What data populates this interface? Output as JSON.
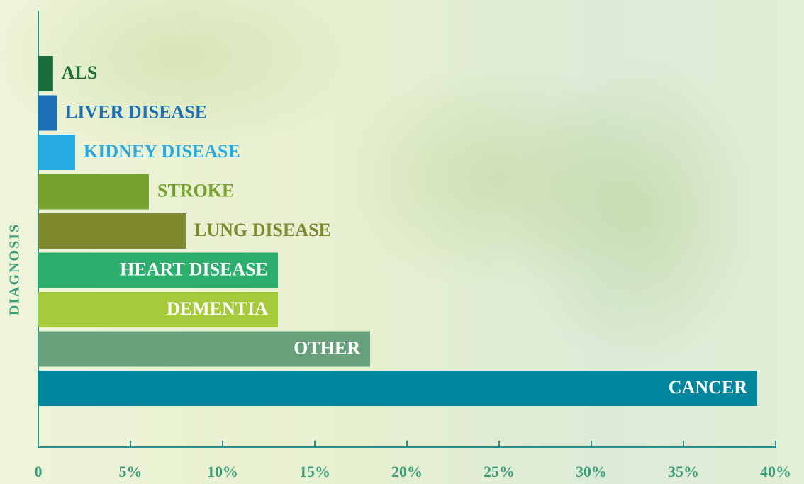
{
  "chart_data": {
    "type": "bar",
    "orientation": "horizontal",
    "y_label": "DIAGNOSIS",
    "categories": [
      "ALS",
      "LIVER DISEASE",
      "KIDNEY DISEASE",
      "STROKE",
      "LUNG DISEASE",
      "HEART DISEASE",
      "DEMENTIA",
      "OTHER",
      "CANCER"
    ],
    "values": [
      0.8,
      1,
      2,
      6,
      8,
      13,
      13,
      18,
      39
    ],
    "colors": [
      "#1b6e3a",
      "#1a6fb6",
      "#27a9e1",
      "#76a22d",
      "#7f8a2e",
      "#2eae6c",
      "#a6cb3a",
      "#67a07a",
      "#00879e"
    ],
    "xlim": [
      0,
      40
    ],
    "xticks": [
      0,
      {
        "value": 5,
        "label": "5%"
      },
      {
        "value": 10,
        "label": "10%"
      },
      {
        "value": 15,
        "label": "15%"
      },
      {
        "value": 20,
        "label": "20%"
      },
      {
        "value": 25,
        "label": "25%"
      },
      {
        "value": 30,
        "label": "30%"
      },
      {
        "value": 35,
        "label": "35%"
      },
      {
        "value": 40,
        "label": "40%"
      }
    ]
  }
}
